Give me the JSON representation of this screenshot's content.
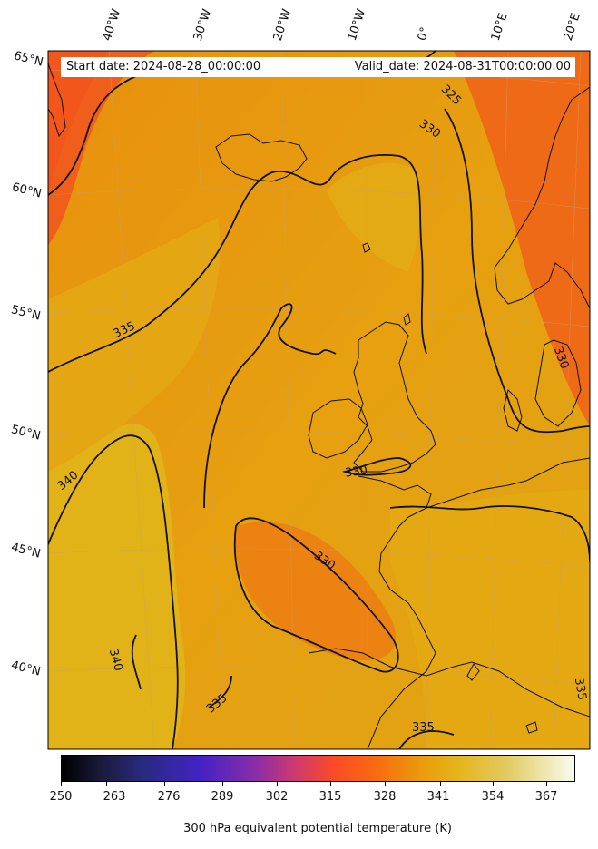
{
  "map": {
    "header": {
      "start_text": "Start date: 2024-08-28_00:00:00",
      "valid_text": "Valid_date: 2024-08-31T00:00:00.00"
    },
    "longitude_labels": [
      "40°W",
      "30°W",
      "20°W",
      "10°W",
      "0°",
      "10°E",
      "20°E"
    ],
    "latitude_labels": [
      "65°N",
      "60°N",
      "55°N",
      "50°N",
      "45°N",
      "40°N"
    ],
    "contour_labels": [
      "325",
      "330",
      "335",
      "340",
      "330",
      "340",
      "330",
      "335",
      "335",
      "335",
      "330"
    ],
    "colorbar": {
      "ticks": [
        "250",
        "263",
        "276",
        "289",
        "302",
        "315",
        "328",
        "341",
        "354",
        "367"
      ],
      "title": "300 hPa equivalent potential temperature (K)"
    },
    "colors": {
      "warm_orange": "#ef7a12",
      "red_orange": "#f4621c",
      "gold": "#e2b316",
      "contour": "#111111"
    }
  }
}
